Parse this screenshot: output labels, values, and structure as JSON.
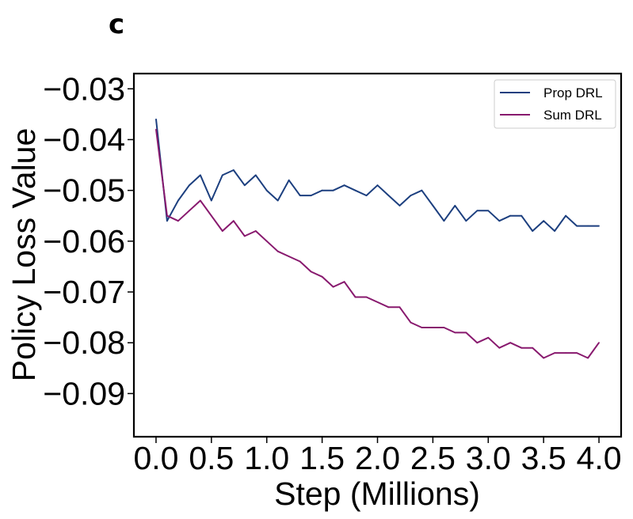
{
  "panel_label": "c",
  "chart_data": {
    "type": "line",
    "title": "",
    "xlabel": "Step (Millions)",
    "ylabel": "Policy Loss Value",
    "xlim": [
      -0.2,
      4.2
    ],
    "ylim": [
      -0.0985,
      -0.027
    ],
    "xticks": [
      0.0,
      0.5,
      1.0,
      1.5,
      2.0,
      2.5,
      3.0,
      3.5,
      4.0
    ],
    "xtick_labels": [
      "0.0",
      "0.5",
      "1.0",
      "1.5",
      "2.0",
      "2.5",
      "3.0",
      "3.5",
      "4.0"
    ],
    "yticks": [
      -0.03,
      -0.04,
      -0.05,
      -0.06,
      -0.07,
      -0.08,
      -0.09
    ],
    "ytick_labels": [
      "−0.03",
      "−0.04",
      "−0.05",
      "−0.06",
      "−0.07",
      "−0.08",
      "−0.09"
    ],
    "grid": false,
    "legend_position": "top-right",
    "x": [
      0.0,
      0.1,
      0.2,
      0.3,
      0.4,
      0.5,
      0.6,
      0.7,
      0.8,
      0.9,
      1.0,
      1.1,
      1.2,
      1.3,
      1.4,
      1.5,
      1.6,
      1.7,
      1.8,
      1.9,
      2.0,
      2.1,
      2.2,
      2.3,
      2.4,
      2.5,
      2.6,
      2.7,
      2.8,
      2.9,
      3.0,
      3.1,
      3.2,
      3.3,
      3.4,
      3.5,
      3.6,
      3.7,
      3.8,
      3.9,
      4.0
    ],
    "series": [
      {
        "name": "Prop DRL",
        "color": "#1c3f7f",
        "values": [
          -0.036,
          -0.056,
          -0.052,
          -0.049,
          -0.047,
          -0.052,
          -0.047,
          -0.046,
          -0.049,
          -0.047,
          -0.05,
          -0.052,
          -0.048,
          -0.051,
          -0.051,
          -0.05,
          -0.05,
          -0.049,
          -0.05,
          -0.051,
          -0.049,
          -0.051,
          -0.053,
          -0.051,
          -0.05,
          -0.053,
          -0.056,
          -0.053,
          -0.056,
          -0.054,
          -0.054,
          -0.056,
          -0.055,
          -0.055,
          -0.058,
          -0.056,
          -0.058,
          -0.055,
          -0.057,
          -0.057,
          -0.057
        ]
      },
      {
        "name": "Sum DRL",
        "color": "#88196e",
        "values": [
          -0.038,
          -0.055,
          -0.056,
          -0.054,
          -0.052,
          -0.055,
          -0.058,
          -0.056,
          -0.059,
          -0.058,
          -0.06,
          -0.062,
          -0.063,
          -0.064,
          -0.066,
          -0.067,
          -0.069,
          -0.068,
          -0.071,
          -0.071,
          -0.072,
          -0.073,
          -0.073,
          -0.076,
          -0.077,
          -0.077,
          -0.077,
          -0.078,
          -0.078,
          -0.08,
          -0.079,
          -0.081,
          -0.08,
          -0.081,
          -0.081,
          -0.083,
          -0.082,
          -0.082,
          -0.082,
          -0.083,
          -0.08
        ]
      }
    ]
  }
}
